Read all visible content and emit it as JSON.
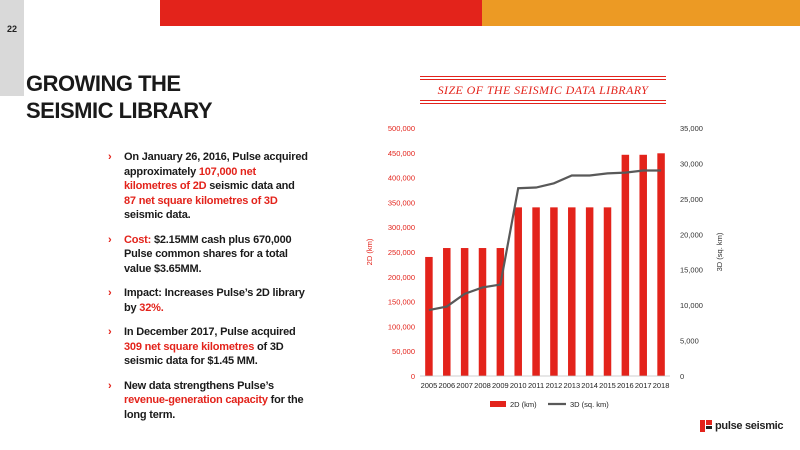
{
  "slide": {
    "page_number": "22",
    "title_line1": "GROWING THE",
    "title_line2": "SEISMIC LIBRARY",
    "chart_heading": "SIZE OF THE SEISMIC DATA LIBRARY",
    "logo_text": "pulse seismic"
  },
  "bullets": [
    {
      "parts": [
        {
          "text": "On January 26, 2016, Pulse acquired approximately ",
          "hl": false
        },
        {
          "text": "107,000 net kilometres of 2D",
          "hl": true
        },
        {
          "text": " seismic data and ",
          "hl": false
        },
        {
          "text": "87 net square kilometres of 3D",
          "hl": true
        },
        {
          "text": " seismic data.",
          "hl": false
        }
      ]
    },
    {
      "parts": [
        {
          "text": "Cost: ",
          "hl": true
        },
        {
          "text": "$2.15MM cash plus 670,000 Pulse common shares for a total value $3.65MM.",
          "hl": false
        }
      ]
    },
    {
      "parts": [
        {
          "text": "Impact: Increases Pulse’s 2D library by ",
          "hl": false
        },
        {
          "text": "32%.",
          "hl": true
        }
      ]
    },
    {
      "parts": [
        {
          "text": "In December 2017, Pulse acquired ",
          "hl": false
        },
        {
          "text": "309 net square kilometres",
          "hl": true
        },
        {
          "text": " of 3D seismic data for $1.45 MM.",
          "hl": false
        }
      ]
    },
    {
      "parts": [
        {
          "text": "New data strengthens Pulse’s ",
          "hl": false
        },
        {
          "text": "revenue-generation capacity",
          "hl": true
        },
        {
          "text": " for the long term.",
          "hl": false
        }
      ]
    }
  ],
  "colors": {
    "accent_red": "#e3231b",
    "accent_orange": "#ec9a24",
    "line_gray": "#595959"
  },
  "chart_data": {
    "type": "bar",
    "categories": [
      "2005",
      "2006",
      "2007",
      "2008",
      "2009",
      "2010",
      "2011",
      "2012",
      "2013",
      "2014",
      "2015",
      "2016",
      "2017",
      "2018"
    ],
    "series": [
      {
        "name": "2D (km)",
        "type": "bar",
        "axis": "left",
        "values": [
          240000,
          258000,
          258000,
          258000,
          258000,
          340000,
          340000,
          340000,
          340000,
          340000,
          340000,
          446000,
          446000,
          449000
        ]
      },
      {
        "name": "3D (sq. km)",
        "type": "line",
        "axis": "right",
        "values": [
          9300,
          9800,
          11600,
          12500,
          12900,
          26500,
          26600,
          27200,
          28300,
          28300,
          28600,
          28700,
          29000,
          29000
        ]
      }
    ],
    "ylabel": "2D (km)",
    "y2label": "3D (sq. km)",
    "ylim": [
      0,
      500000
    ],
    "y2lim": [
      0,
      35000
    ],
    "yticks": [
      "0",
      "50,000",
      "100,000",
      "150,000",
      "200,000",
      "250,000",
      "300,000",
      "350,000",
      "400,000",
      "450,000",
      "500,000"
    ],
    "y2ticks": [
      "0",
      "5,000",
      "10,000",
      "15,000",
      "20,000",
      "25,000",
      "30,000",
      "35,000"
    ],
    "legend": "bottom",
    "grid": false
  }
}
